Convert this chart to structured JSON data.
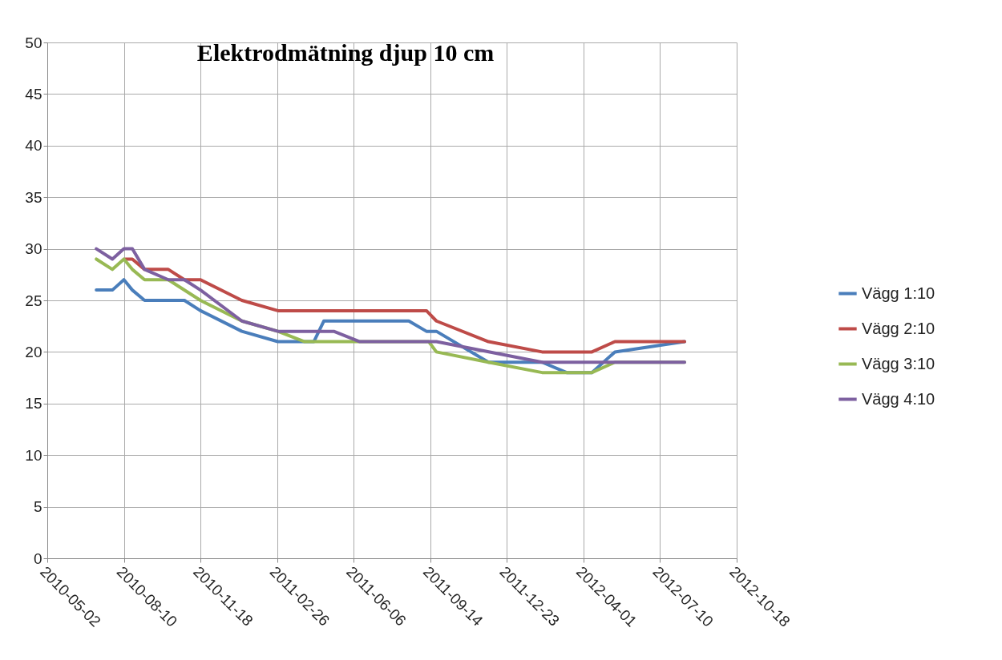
{
  "chart_data": {
    "type": "line",
    "title": "Elektrodmätning djup 10 cm",
    "xlim": [
      "2010-05-02",
      "2012-10-18"
    ],
    "xticks": [
      "2010-05-02",
      "2010-08-10",
      "2010-11-18",
      "2011-02-26",
      "2011-06-06",
      "2011-09-14",
      "2011-12-23",
      "2012-04-01",
      "2012-07-10",
      "2012-10-18"
    ],
    "ylim": [
      0,
      50
    ],
    "yticks": [
      0,
      5,
      10,
      15,
      20,
      25,
      30,
      35,
      40,
      45,
      50
    ],
    "grid": true,
    "legend": "right",
    "line_style": "solid",
    "marker": "none",
    "series": [
      {
        "name": "Vägg 1:10",
        "color": "#4a7ebb",
        "x": [
          "2010-07-05",
          "2010-07-26",
          "2010-08-10",
          "2010-08-21",
          "2010-09-06",
          "2010-10-28",
          "2010-11-18",
          "2011-01-11",
          "2011-02-27",
          "2011-04-15",
          "2011-04-28",
          "2011-08-17",
          "2011-09-09",
          "2011-09-22",
          "2011-11-29",
          "2012-02-07",
          "2012-03-10",
          "2012-04-12",
          "2012-05-12",
          "2012-08-11"
        ],
        "values": [
          26,
          26,
          27,
          26,
          25,
          25,
          24,
          22,
          21,
          21,
          23,
          23,
          22,
          22,
          19,
          19,
          18,
          18,
          20,
          21
        ]
      },
      {
        "name": " Vägg 2:10",
        "color": "#be4b48",
        "x": [
          "2010-08-12",
          "2010-08-21",
          "2010-09-06",
          "2010-10-07",
          "2010-10-28",
          "2010-11-18",
          "2011-01-11",
          "2011-02-27",
          "2011-09-09",
          "2011-09-22",
          "2011-11-29",
          "2012-02-07",
          "2012-04-12",
          "2012-05-12",
          "2012-08-11"
        ],
        "values": [
          29,
          29,
          28,
          28,
          27,
          27,
          25,
          24,
          24,
          23,
          21,
          20,
          20,
          21,
          21
        ]
      },
      {
        "name": "Vägg 3:10",
        "color": "#98b954",
        "x": [
          "2010-07-05",
          "2010-07-26",
          "2010-08-10",
          "2010-08-21",
          "2010-09-06",
          "2010-10-07",
          "2010-11-18",
          "2011-01-11",
          "2011-02-27",
          "2011-04-03",
          "2011-09-12",
          "2011-09-22",
          "2011-11-29",
          "2012-02-07",
          "2012-04-12",
          "2012-05-12",
          "2012-08-11"
        ],
        "values": [
          29,
          28,
          29,
          28,
          27,
          27,
          25,
          23,
          22,
          21,
          21,
          20,
          19,
          18,
          18,
          19,
          19
        ]
      },
      {
        "name": "Vägg 4:10",
        "color": "#7d60a0",
        "x": [
          "2010-07-05",
          "2010-07-26",
          "2010-08-10",
          "2010-08-21",
          "2010-09-06",
          "2010-10-07",
          "2010-10-28",
          "2010-11-18",
          "2011-01-11",
          "2011-02-27",
          "2011-05-11",
          "2011-06-14",
          "2011-09-22",
          "2012-02-07",
          "2012-08-11"
        ],
        "values": [
          30,
          29,
          30,
          30,
          28,
          27,
          27,
          26,
          23,
          22,
          22,
          21,
          21,
          19,
          19
        ]
      }
    ]
  }
}
